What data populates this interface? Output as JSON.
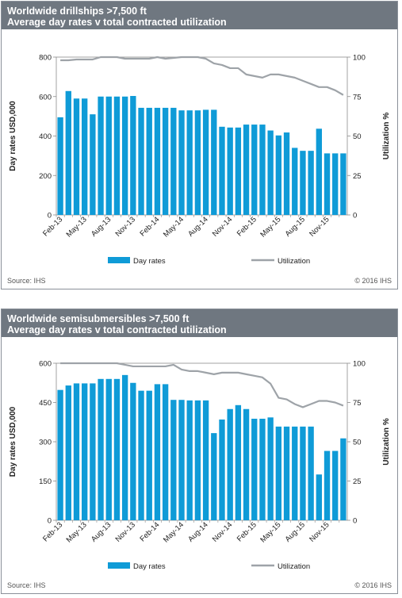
{
  "source_label": "Source: IHS",
  "copyright_label": "© 2016 IHS",
  "colors": {
    "bar": "#0f9bd7",
    "line": "#9ea3a8",
    "header": "#6f7780"
  },
  "chart_data": [
    {
      "type": "bar",
      "title": "Worldwide drillships >7,500 ft",
      "subtitle": "Average day rates v total contracted utilization",
      "ylabel": "Day rates USD,000",
      "y2label": "Utilization %",
      "ylim": [
        0,
        800
      ],
      "y2lim": [
        0,
        100
      ],
      "yticks": [
        "0",
        "200",
        "400",
        "600",
        "800"
      ],
      "y2ticks": [
        "0",
        "25",
        "50",
        "75",
        "100"
      ],
      "xtick_labels": [
        "Feb-13",
        "May-13",
        "Aug-13",
        "Nov-13",
        "Feb-14",
        "May-14",
        "Aug-14",
        "Nov-14",
        "Feb-15",
        "May-15",
        "Aug-15",
        "Nov-15"
      ],
      "categories": [
        "Feb-13",
        "Mar-13",
        "Apr-13",
        "May-13",
        "Jun-13",
        "Jul-13",
        "Aug-13",
        "Sep-13",
        "Oct-13",
        "Nov-13",
        "Dec-13",
        "Jan-14",
        "Feb-14",
        "Mar-14",
        "Apr-14",
        "May-14",
        "Jun-14",
        "Jul-14",
        "Aug-14",
        "Sep-14",
        "Oct-14",
        "Nov-14",
        "Dec-14",
        "Jan-15",
        "Feb-15",
        "Mar-15",
        "Apr-15",
        "May-15",
        "Jun-15",
        "Jul-15",
        "Aug-15",
        "Sep-15",
        "Oct-15",
        "Nov-15",
        "Dec-15",
        "Jan-16"
      ],
      "series": [
        {
          "name": "Day rates",
          "axis": "left",
          "type": "bar",
          "values": [
            495,
            628,
            590,
            590,
            510,
            600,
            600,
            600,
            600,
            603,
            543,
            543,
            543,
            543,
            543,
            530,
            530,
            530,
            533,
            533,
            447,
            443,
            443,
            458,
            458,
            458,
            428,
            403,
            418,
            340,
            325,
            325,
            437,
            312,
            312,
            312
          ]
        },
        {
          "name": "Utilization",
          "axis": "right",
          "type": "line",
          "values": [
            98,
            98,
            98.5,
            98.5,
            98.5,
            100,
            100,
            100,
            99,
            99,
            99,
            99,
            100,
            99,
            99.5,
            100,
            100,
            100,
            99,
            96,
            95,
            93,
            93,
            89,
            88,
            87,
            89,
            89,
            88,
            87,
            85,
            83,
            81,
            81,
            79,
            76
          ]
        }
      ],
      "legend": "bottom"
    },
    {
      "type": "bar",
      "title": "Worldwide semisubmersibles >7,500 ft",
      "subtitle": "Average day rates v total contracted utilization",
      "ylabel": "Day rates USD,000",
      "y2label": "Utilization %",
      "ylim": [
        0,
        600
      ],
      "y2lim": [
        0,
        100
      ],
      "yticks": [
        "0",
        "150",
        "300",
        "450",
        "600"
      ],
      "y2ticks": [
        "0",
        "25",
        "50",
        "75",
        "100"
      ],
      "xtick_labels": [
        "Feb-13",
        "May-13",
        "Aug-13",
        "Nov-13",
        "Feb-14",
        "May-14",
        "Aug-14",
        "Nov-14",
        "Feb-15",
        "May-15",
        "Aug-15",
        "Nov-15"
      ],
      "categories": [
        "Feb-13",
        "Mar-13",
        "Apr-13",
        "May-13",
        "Jun-13",
        "Jul-13",
        "Aug-13",
        "Sep-13",
        "Oct-13",
        "Nov-13",
        "Dec-13",
        "Jan-14",
        "Feb-14",
        "Mar-14",
        "Apr-14",
        "May-14",
        "Jun-14",
        "Jul-14",
        "Aug-14",
        "Sep-14",
        "Oct-14",
        "Nov-14",
        "Dec-14",
        "Jan-15",
        "Feb-15",
        "Mar-15",
        "Apr-15",
        "May-15",
        "Jun-15",
        "Jul-15",
        "Aug-15",
        "Sep-15",
        "Oct-15",
        "Nov-15",
        "Dec-15",
        "Jan-16"
      ],
      "series": [
        {
          "name": "Day rates",
          "axis": "left",
          "type": "bar",
          "values": [
            498,
            515,
            523,
            523,
            523,
            540,
            540,
            540,
            555,
            525,
            495,
            495,
            520,
            520,
            460,
            460,
            458,
            458,
            458,
            333,
            385,
            425,
            440,
            425,
            388,
            388,
            393,
            358,
            358,
            358,
            358,
            358,
            175,
            265,
            265,
            313
          ]
        },
        {
          "name": "Utilization",
          "axis": "right",
          "type": "line",
          "values": [
            100,
            100,
            100,
            100,
            100,
            100,
            100,
            100,
            99,
            98,
            98,
            98,
            98,
            98,
            99,
            96,
            95,
            95,
            94,
            93,
            94,
            94,
            94,
            93,
            92,
            91,
            87,
            78,
            77,
            74,
            72,
            74,
            76,
            76,
            75,
            73
          ]
        }
      ],
      "legend": "bottom"
    }
  ]
}
